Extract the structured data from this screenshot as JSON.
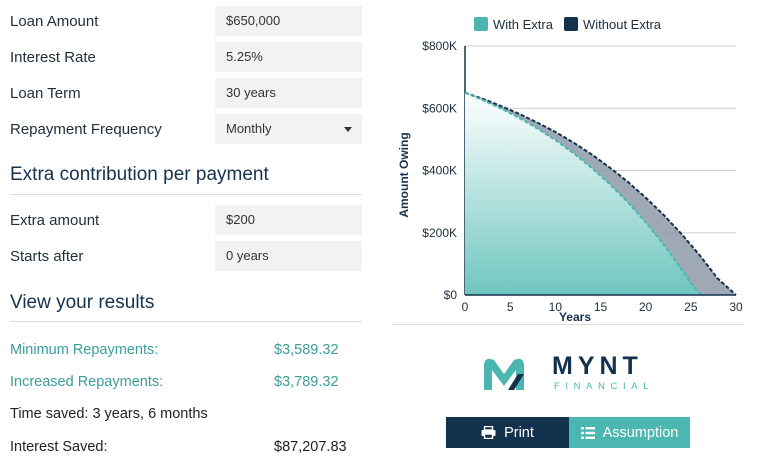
{
  "inputs": {
    "loan_amount": {
      "label": "Loan Amount",
      "value": "$650,000"
    },
    "interest_rate": {
      "label": "Interest Rate",
      "value": "5.25%"
    },
    "loan_term": {
      "label": "Loan Term",
      "value": "30 years"
    },
    "repayment_frequency": {
      "label": "Repayment Frequency",
      "value": "Monthly"
    }
  },
  "extra": {
    "heading": "Extra contribution per payment",
    "amount": {
      "label": "Extra amount",
      "value": "$200"
    },
    "starts_after": {
      "label": "Starts after",
      "value": "0 years"
    }
  },
  "results": {
    "heading": "View your results",
    "minimum": {
      "label": "Minimum Repayments:",
      "value": "$3,589.32"
    },
    "increased": {
      "label": "Increased Repayments:",
      "value": "$3,789.32"
    },
    "time_saved": "Time saved: 3 years, 6 months",
    "interest_saved": {
      "label": "Interest Saved:",
      "value": "$87,207.83"
    }
  },
  "chart_data": {
    "type": "area",
    "xlabel": "Years",
    "ylabel": "Amount Owing",
    "xlim": [
      0,
      30
    ],
    "ylim": [
      0,
      800000
    ],
    "x_ticks": [
      0,
      5,
      10,
      15,
      20,
      25,
      30
    ],
    "y_ticks": [
      0,
      200000,
      400000,
      600000,
      800000
    ],
    "y_tick_labels": [
      "$0",
      "$200K",
      "$400K",
      "$600K",
      "$800K"
    ],
    "legend_position": "top",
    "series": [
      {
        "name": "With Extra",
        "color": "#4bb7b0",
        "x": [
          0,
          2,
          4,
          6,
          8,
          10,
          12,
          14,
          16,
          18,
          20,
          22,
          24,
          25,
          26,
          26.5
        ],
        "y": [
          650000,
          626000,
          599000,
          569000,
          535000,
          498000,
          456000,
          409000,
          357000,
          299000,
          234000,
          162000,
          82000,
          38000,
          5000,
          0
        ]
      },
      {
        "name": "Without Extra",
        "color": "#12324d",
        "x": [
          0,
          2,
          4,
          6,
          8,
          10,
          12,
          14,
          16,
          18,
          20,
          22,
          24,
          26,
          28,
          29,
          30
        ],
        "y": [
          650000,
          630000,
          607000,
          582000,
          554000,
          524000,
          490000,
          452000,
          410000,
          364000,
          313000,
          257000,
          195000,
          127000,
          52000,
          26000,
          0
        ]
      }
    ]
  },
  "logo": {
    "name": "MYNT",
    "sub": "FINANCIAL"
  },
  "buttons": {
    "print": "Print",
    "assumption": "Assumption"
  },
  "colors": {
    "accent": "#4bb7b0",
    "brand_dark": "#12324d"
  }
}
